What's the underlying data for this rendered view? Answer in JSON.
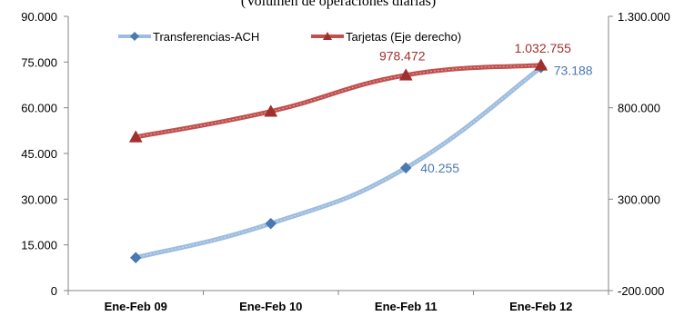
{
  "chart_data": {
    "type": "line",
    "title": "(Volumen de operaciones diarias)",
    "categories": [
      "Ene-Feb 09",
      "Ene-Feb 10",
      "Ene-Feb 11",
      "Ene-Feb 12"
    ],
    "series": [
      {
        "name": "Transferencias-ACH",
        "axis": "left",
        "color": "#4a78b0",
        "line_color": "#9dbce0",
        "marker": "diamond",
        "values": [
          10800,
          22000,
          40255,
          73188
        ],
        "labels": [
          null,
          null,
          "40.255",
          "73.188"
        ]
      },
      {
        "name": "Tarjetas (Eje derecho)",
        "axis": "right",
        "color": "#a0302e",
        "line_color": "#c0504d",
        "marker": "triangle",
        "values": [
          640000,
          780000,
          978472,
          1032755
        ],
        "labels": [
          null,
          null,
          "978.472",
          "1.032.755"
        ]
      }
    ],
    "y_left": {
      "min": 0,
      "max": 90000,
      "ticks": [
        0,
        15000,
        30000,
        45000,
        60000,
        75000,
        90000
      ],
      "tick_labels": [
        "0",
        "15.000",
        "30.000",
        "45.000",
        "60.000",
        "75.000",
        "90.000"
      ]
    },
    "y_right": {
      "min": -200000,
      "max": 1300000,
      "ticks": [
        -200000,
        300000,
        800000,
        1300000
      ],
      "tick_labels": [
        "-200.000",
        "300.000",
        "800.000",
        "1.300.000"
      ]
    },
    "grid": false,
    "legend_position": "top-left"
  }
}
